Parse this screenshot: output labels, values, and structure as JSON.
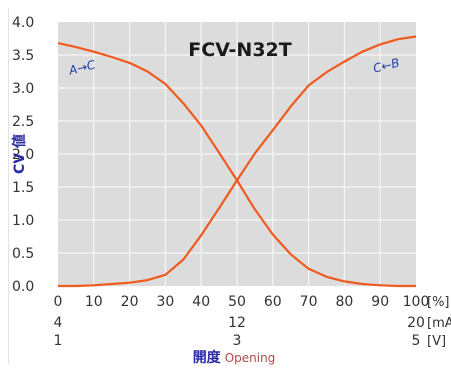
{
  "chart_data": {
    "type": "line",
    "title": "FCV-N32T",
    "ylabel": "CV 値",
    "xlabel": {
      "jp": "開度",
      "en": "Opening"
    },
    "ylim": [
      0,
      4.0
    ],
    "xlim": [
      0,
      100
    ],
    "yticks": [
      "0.0",
      "0.5",
      "1.0",
      "1.5",
      "2.0",
      "2.5",
      "3.0",
      "3.5",
      "4.0"
    ],
    "xticks": [
      "0",
      "10",
      "20",
      "30",
      "40",
      "50",
      "60",
      "70",
      "80",
      "90",
      "100"
    ],
    "x_unit_rows": [
      {
        "unit": "[%]",
        "ticks": [
          {
            "x": 0,
            "label": "0"
          },
          {
            "x": 10,
            "label": "10"
          },
          {
            "x": 20,
            "label": "20"
          },
          {
            "x": 30,
            "label": "30"
          },
          {
            "x": 40,
            "label": "40"
          },
          {
            "x": 50,
            "label": "50"
          },
          {
            "x": 60,
            "label": "60"
          },
          {
            "x": 70,
            "label": "70"
          },
          {
            "x": 80,
            "label": "80"
          },
          {
            "x": 90,
            "label": "90"
          },
          {
            "x": 100,
            "label": "100"
          }
        ]
      },
      {
        "unit": "[mA]",
        "ticks": [
          {
            "x": 0,
            "label": "4"
          },
          {
            "x": 50,
            "label": "12"
          },
          {
            "x": 100,
            "label": "20"
          }
        ]
      },
      {
        "unit": "[V]",
        "ticks": [
          {
            "x": 0,
            "label": "1"
          },
          {
            "x": 50,
            "label": "3"
          },
          {
            "x": 100,
            "label": "5"
          }
        ]
      }
    ],
    "series": [
      {
        "name": "A→C",
        "color": "#ef5a1e",
        "points": [
          [
            0,
            3.68
          ],
          [
            5,
            3.62
          ],
          [
            10,
            3.55
          ],
          [
            15,
            3.47
          ],
          [
            20,
            3.38
          ],
          [
            25,
            3.25
          ],
          [
            30,
            3.06
          ],
          [
            35,
            2.77
          ],
          [
            40,
            2.43
          ],
          [
            45,
            2.02
          ],
          [
            50,
            1.6
          ],
          [
            55,
            1.16
          ],
          [
            60,
            0.78
          ],
          [
            65,
            0.48
          ],
          [
            70,
            0.26
          ],
          [
            75,
            0.14
          ],
          [
            80,
            0.07
          ],
          [
            85,
            0.03
          ],
          [
            90,
            0.01
          ],
          [
            95,
            0.0
          ],
          [
            100,
            0.0
          ]
        ]
      },
      {
        "name": "C←B",
        "color": "#ef5a1e",
        "points": [
          [
            0,
            0.0
          ],
          [
            5,
            0.0
          ],
          [
            10,
            0.01
          ],
          [
            15,
            0.03
          ],
          [
            20,
            0.05
          ],
          [
            25,
            0.09
          ],
          [
            30,
            0.17
          ],
          [
            35,
            0.4
          ],
          [
            40,
            0.77
          ],
          [
            45,
            1.18
          ],
          [
            50,
            1.6
          ],
          [
            55,
            2.01
          ],
          [
            60,
            2.36
          ],
          [
            65,
            2.72
          ],
          [
            70,
            3.04
          ],
          [
            75,
            3.24
          ],
          [
            80,
            3.4
          ],
          [
            85,
            3.55
          ],
          [
            90,
            3.66
          ],
          [
            95,
            3.74
          ],
          [
            100,
            3.78
          ]
        ]
      }
    ],
    "annotations": [
      {
        "text": "A→C",
        "x": 7,
        "y": 3.25
      },
      {
        "text": "C←B",
        "x": 92,
        "y": 3.28
      }
    ],
    "grid": true,
    "colors": {
      "plot_bg": "#dcdcdc",
      "grid": "#f6f6f6",
      "line": "#ef5a1e",
      "axis_label": "#2b2ba6",
      "annotation": "#1f3fa8",
      "text": "#333333",
      "opening_en": "#b04a4a"
    }
  }
}
